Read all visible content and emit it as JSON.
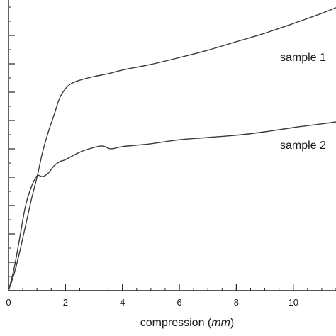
{
  "chart_data": {
    "type": "line",
    "title": "",
    "xlabel": {
      "main": "compression ",
      "unit_open": "(",
      "unit": "mm",
      "unit_close": ")"
    },
    "ylabel": "",
    "xlim": [
      0,
      11.5
    ],
    "ylim": [
      0,
      10
    ],
    "x_ticks": [
      0,
      2,
      4,
      6,
      8,
      10
    ],
    "x_tick_labels": [
      "0",
      "2",
      "4",
      "6",
      "8",
      "10"
    ],
    "x_minor_step": 0.5,
    "y_ticks": [
      0,
      1,
      2,
      3,
      4,
      5,
      6,
      7,
      8,
      9
    ],
    "y_minor_step": 0.5,
    "grid": false,
    "legend": "none",
    "series": [
      {
        "label_text": "sample 1",
        "color": "#3a3a3a",
        "x": [
          0,
          0.2,
          0.4,
          0.6,
          0.8,
          1.0,
          1.2,
          1.4,
          1.6,
          1.8,
          2.0,
          2.2,
          2.5,
          3.0,
          3.5,
          4.0,
          5.0,
          6.0,
          7.0,
          8.0,
          9.0,
          10.0,
          11.0,
          11.5
        ],
        "y": [
          0,
          0.6,
          1.4,
          2.3,
          3.2,
          4.0,
          4.9,
          5.6,
          6.2,
          6.8,
          7.12,
          7.3,
          7.42,
          7.55,
          7.65,
          7.78,
          7.98,
          8.22,
          8.48,
          8.78,
          9.08,
          9.42,
          9.78,
          9.98
        ]
      },
      {
        "label_text": "sample 2",
        "color": "#3a3a3a",
        "x": [
          0,
          0.2,
          0.4,
          0.6,
          0.8,
          1.0,
          1.2,
          1.4,
          1.6,
          1.8,
          2.0,
          2.5,
          3.0,
          3.3,
          3.6,
          4.0,
          5.0,
          6.0,
          7.0,
          8.0,
          9.0,
          10.0,
          11.0,
          11.5
        ],
        "y": [
          0,
          0.8,
          1.9,
          3.0,
          3.65,
          4.05,
          4.02,
          4.15,
          4.4,
          4.55,
          4.62,
          4.88,
          5.05,
          5.1,
          5.0,
          5.08,
          5.18,
          5.32,
          5.4,
          5.48,
          5.6,
          5.75,
          5.88,
          5.95
        ]
      }
    ]
  }
}
